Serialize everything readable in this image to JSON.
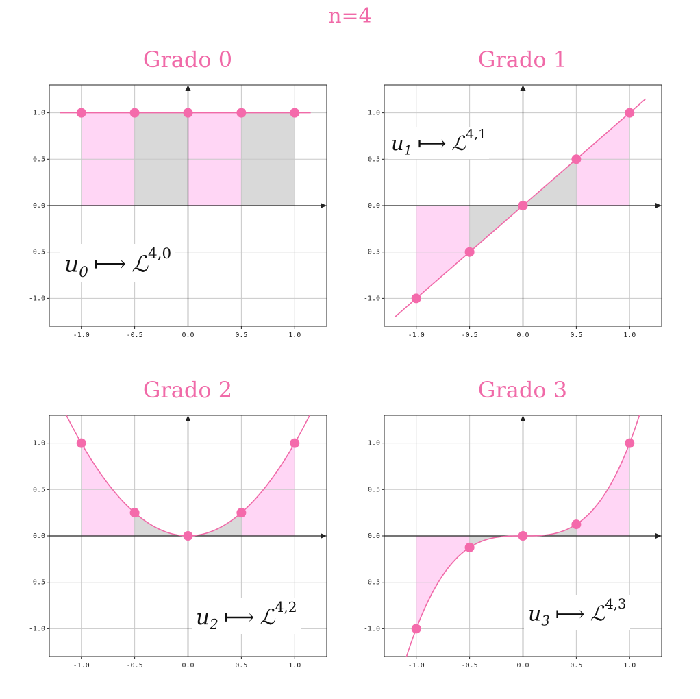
{
  "main_title": "n=4",
  "chart_data": [
    {
      "type": "line",
      "title": "Grado 0",
      "degree": 0,
      "formula": {
        "var": "u",
        "sub": "0",
        "target": "ℒ",
        "sup": "4,0"
      },
      "x": [
        -1.0,
        -0.5,
        0.0,
        0.5,
        1.0
      ],
      "y": [
        1.0,
        1.0,
        1.0,
        1.0,
        1.0
      ],
      "xlim": [
        -1.3,
        1.3
      ],
      "ylim": [
        -1.3,
        1.3
      ],
      "xticks": [
        -1.0,
        -0.5,
        0.0,
        0.5,
        1.0
      ],
      "yticks": [
        -1.0,
        -0.5,
        0.0,
        0.5,
        1.0
      ],
      "xtick_labels": [
        "-1.0",
        "-0.5",
        "0.0",
        "0.5",
        "1.0"
      ],
      "ytick_labels": [
        "-1.0",
        "-0.5",
        "0.0",
        "0.5",
        "1.0"
      ],
      "curve_xrange": [
        -1.2,
        1.15
      ],
      "grid": true
    },
    {
      "type": "line",
      "title": "Grado 1",
      "degree": 1,
      "formula": {
        "var": "u",
        "sub": "1",
        "target": "ℒ",
        "sup": "4,1"
      },
      "x": [
        -1.0,
        -0.5,
        0.0,
        0.5,
        1.0
      ],
      "y": [
        -1.0,
        -0.5,
        0.0,
        0.5,
        1.0
      ],
      "xlim": [
        -1.3,
        1.3
      ],
      "ylim": [
        -1.3,
        1.3
      ],
      "xticks": [
        -1.0,
        -0.5,
        0.0,
        0.5,
        1.0
      ],
      "yticks": [
        -1.0,
        -0.5,
        0.0,
        0.5,
        1.0
      ],
      "xtick_labels": [
        "-1.0",
        "-0.5",
        "0.0",
        "0.5",
        "1.0"
      ],
      "ytick_labels": [
        "-1.0",
        "-0.5",
        "0.0",
        "0.5",
        "1.0"
      ],
      "curve_xrange": [
        -1.2,
        1.15
      ],
      "grid": true
    },
    {
      "type": "line",
      "title": "Grado 2",
      "degree": 2,
      "formula": {
        "var": "u",
        "sub": "2",
        "target": "ℒ",
        "sup": "4,2"
      },
      "x": [
        -1.0,
        -0.5,
        0.0,
        0.5,
        1.0
      ],
      "y": [
        1.0,
        0.25,
        0.0,
        0.25,
        1.0
      ],
      "xlim": [
        -1.3,
        1.3
      ],
      "ylim": [
        -1.3,
        1.3
      ],
      "xticks": [
        -1.0,
        -0.5,
        0.0,
        0.5,
        1.0
      ],
      "yticks": [
        -1.0,
        -0.5,
        0.0,
        0.5,
        1.0
      ],
      "xtick_labels": [
        "-1.0",
        "-0.5",
        "0.0",
        "0.5",
        "1.0"
      ],
      "ytick_labels": [
        "-1.0",
        "-0.5",
        "0.0",
        "0.5",
        "1.0"
      ],
      "curve_xrange": [
        -1.2,
        1.15
      ],
      "grid": true
    },
    {
      "type": "line",
      "title": "Grado 3",
      "degree": 3,
      "formula": {
        "var": "u",
        "sub": "3",
        "target": "ℒ",
        "sup": "4,3"
      },
      "x": [
        -1.0,
        -0.5,
        0.0,
        0.5,
        1.0
      ],
      "y": [
        -1.0,
        -0.125,
        0.0,
        0.125,
        1.0
      ],
      "xlim": [
        -1.3,
        1.3
      ],
      "ylim": [
        -1.3,
        1.3
      ],
      "xticks": [
        -1.0,
        -0.5,
        0.0,
        0.5,
        1.0
      ],
      "yticks": [
        -1.0,
        -0.5,
        0.0,
        0.5,
        1.0
      ],
      "xtick_labels": [
        "-1.0",
        "-0.5",
        "0.0",
        "0.5",
        "1.0"
      ],
      "ytick_labels": [
        "-1.0",
        "-0.5",
        "0.0",
        "0.5",
        "1.0"
      ],
      "curve_xrange": [
        -1.2,
        1.15
      ],
      "grid": true
    }
  ],
  "colors": {
    "title": "#f06aa8",
    "curve": "#f06aa8",
    "point": "#f46aab",
    "fill_pink": "#ffd6f5",
    "fill_gray": "#d9d9d9",
    "grid": "#c8c8c8",
    "axis": "#222222"
  }
}
